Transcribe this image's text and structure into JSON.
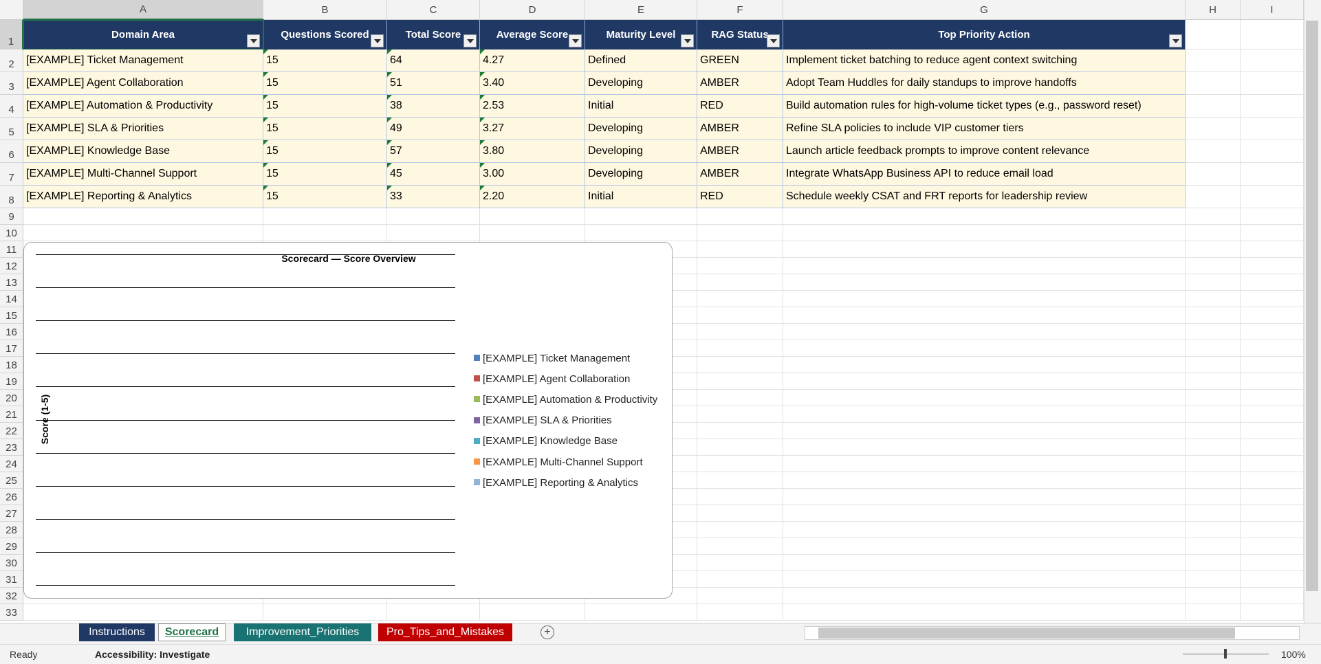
{
  "column_headers": [
    "A",
    "B",
    "C",
    "D",
    "E",
    "F",
    "G",
    "H",
    "I"
  ],
  "row_numbers": [
    1,
    2,
    3,
    4,
    5,
    6,
    7,
    8,
    9,
    10,
    11,
    12,
    13,
    14,
    15,
    16,
    17,
    18,
    19,
    20,
    21,
    22,
    23,
    24,
    25,
    26,
    27,
    28,
    29,
    30,
    31,
    32,
    33
  ],
  "table": {
    "header": [
      "Domain Area",
      "Questions Scored",
      "Total Score",
      "Average Score",
      "Maturity Level",
      "RAG Status",
      "Top Priority Action"
    ],
    "rows": [
      [
        "[EXAMPLE] Ticket Management",
        "15",
        "64",
        "4.27",
        "Defined",
        "GREEN",
        "Implement ticket batching to reduce agent context switching"
      ],
      [
        "[EXAMPLE] Agent Collaboration",
        "15",
        "51",
        "3.40",
        "Developing",
        "AMBER",
        "Adopt Team Huddles for daily standups to improve handoffs"
      ],
      [
        "[EXAMPLE] Automation & Productivity",
        "15",
        "38",
        "2.53",
        "Initial",
        "RED",
        "Build automation rules for high-volume ticket types (e.g., password reset)"
      ],
      [
        "[EXAMPLE] SLA & Priorities",
        "15",
        "49",
        "3.27",
        "Developing",
        "AMBER",
        "Refine SLA policies to include VIP customer tiers"
      ],
      [
        "[EXAMPLE] Knowledge Base",
        "15",
        "57",
        "3.80",
        "Developing",
        "AMBER",
        "Launch article feedback prompts to improve content relevance"
      ],
      [
        "[EXAMPLE] Multi-Channel Support",
        "15",
        "45",
        "3.00",
        "Developing",
        "AMBER",
        "Integrate WhatsApp Business API to reduce email load"
      ],
      [
        "[EXAMPLE] Reporting & Analytics",
        "15",
        "33",
        "2.20",
        "Initial",
        "RED",
        "Schedule weekly CSAT and FRT reports for leadership review"
      ]
    ]
  },
  "chart": {
    "title": "Scorecard — Score Overview",
    "y_axis_label": "Score (1-5)",
    "legend": [
      {
        "name": "[EXAMPLE] Ticket Management",
        "color": "#4f81bd"
      },
      {
        "name": "[EXAMPLE] Agent Collaboration",
        "color": "#c0504d"
      },
      {
        "name": "[EXAMPLE] Automation & Productivity",
        "color": "#9bbb59"
      },
      {
        "name": "[EXAMPLE] SLA & Priorities",
        "color": "#8064a2"
      },
      {
        "name": "[EXAMPLE] Knowledge Base",
        "color": "#4bacc6"
      },
      {
        "name": "[EXAMPLE] Multi-Channel Support",
        "color": "#f79646"
      },
      {
        "name": "[EXAMPLE] Reporting & Analytics",
        "color": "#95b3d7"
      }
    ]
  },
  "sheet_tabs": [
    "Instructions",
    "Scorecard",
    "Improvement_Priorities",
    "Pro_Tips_and_Mistakes"
  ],
  "status_bar": {
    "status": "Ready",
    "accessibility": "Accessibility: Investigate",
    "zoom": "100%"
  }
}
